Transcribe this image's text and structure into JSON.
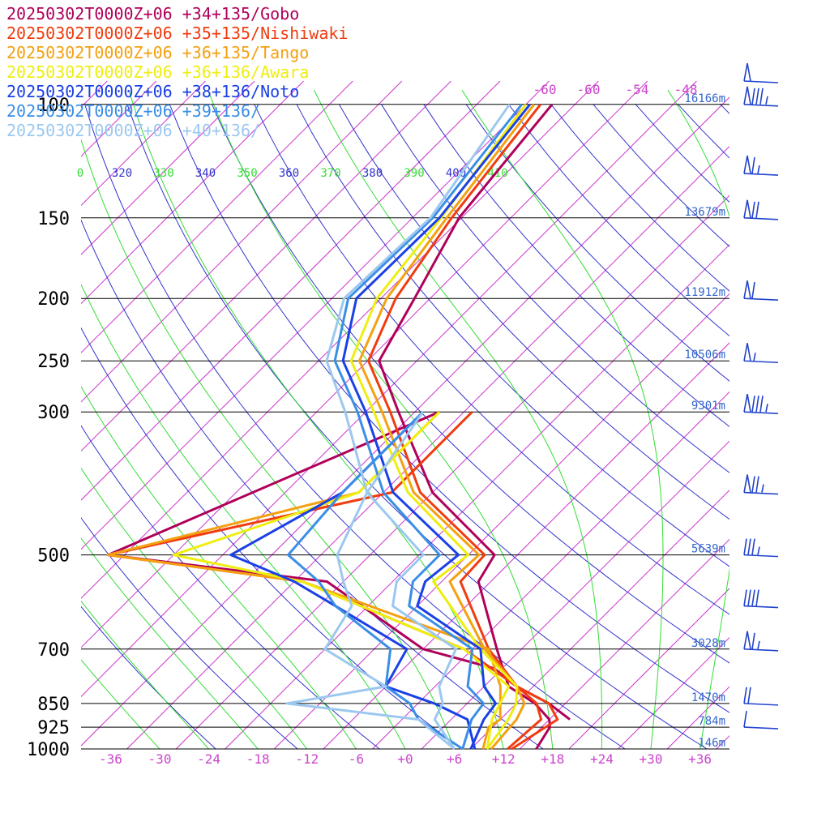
{
  "chart_data": {
    "type": "line",
    "title": "",
    "xlabel": "",
    "ylabel": "",
    "xlim": [
      -40,
      40
    ],
    "y_scale": "log",
    "ylim": [
      1000,
      100
    ],
    "pressure_ticks": [
      {
        "p": 100,
        "label": "100",
        "height": "16166m"
      },
      {
        "p": 150,
        "label": "150",
        "height": "13679m"
      },
      {
        "p": 200,
        "label": "200",
        "height": "11912m"
      },
      {
        "p": 250,
        "label": "250",
        "height": "10506m"
      },
      {
        "p": 300,
        "label": "300",
        "height": "9301m"
      },
      {
        "p": 500,
        "label": "500",
        "height": "5639m"
      },
      {
        "p": 700,
        "label": "700",
        "height": "3028m"
      },
      {
        "p": 850,
        "label": "850",
        "height": "1470m"
      },
      {
        "p": 925,
        "label": "925",
        "height": "784m"
      },
      {
        "p": 1000,
        "label": "1000",
        "height": "146m"
      }
    ],
    "temperature_ticks": [
      "-36",
      "-30",
      "-24",
      "-18",
      "-12",
      "-6",
      "+0",
      "+6",
      "+12",
      "+18",
      "+24",
      "+30",
      "+36"
    ],
    "theta_labels": [
      "0",
      "320",
      "330",
      "340",
      "350",
      "360",
      "370",
      "380",
      "390",
      "400",
      "410"
    ],
    "upper_isotherm_labels": [
      "-60",
      "-60",
      "-54",
      "-48"
    ],
    "colors": {
      "pressure_lines": "#000000",
      "isotherms": "#cc33cc",
      "dry_adiabats": "#3333cc",
      "moist_adiabats": "#33dd33",
      "temperature_labels": "#cc44cc",
      "height_labels": "#3366cc",
      "wind_barbs": "#2244cc"
    },
    "series": [
      {
        "name": "20250302T0000Z+06 +34+135/Gobo",
        "color": "#b0005a",
        "temperature": [
          [
            100,
            -60.8
          ],
          [
            150,
            -58.3
          ],
          [
            200,
            -53.9
          ],
          [
            250,
            -50.6
          ],
          [
            300,
            -42.0
          ],
          [
            400,
            -28.0
          ],
          [
            500,
            -12.8
          ],
          [
            550,
            -11.5
          ],
          [
            700,
            -1.0
          ],
          [
            800,
            5.0
          ],
          [
            850,
            10.3
          ],
          [
            900,
            14.0
          ],
          [
            925,
            15.0
          ],
          [
            1000,
            16.0
          ]
        ],
        "dewpoint": [
          [
            300,
            -37.0
          ],
          [
            500,
            -60.0
          ],
          [
            550,
            -30.0
          ],
          [
            700,
            -10.0
          ],
          [
            750,
            1.0
          ],
          [
            800,
            6.0
          ],
          [
            850,
            12.0
          ],
          [
            900,
            16.5
          ]
        ]
      },
      {
        "name": "20250302T0000Z+06 +35+135/Nishiwaki",
        "color": "#f03c10",
        "temperature": [
          [
            100,
            -62.2
          ],
          [
            150,
            -59.2
          ],
          [
            200,
            -56.2
          ],
          [
            250,
            -51.9
          ],
          [
            300,
            -43.0
          ],
          [
            400,
            -29.5
          ],
          [
            500,
            -14.0
          ],
          [
            550,
            -13.7
          ],
          [
            700,
            -2.0
          ],
          [
            800,
            6.0
          ],
          [
            850,
            10.5
          ],
          [
            900,
            13.0
          ],
          [
            1000,
            12.5
          ]
        ],
        "dewpoint": [
          [
            300,
            -33.0
          ],
          [
            400,
            -33.0
          ],
          [
            500,
            -60.0
          ],
          [
            550,
            -33.0
          ],
          [
            700,
            -5.0
          ],
          [
            800,
            6.0
          ],
          [
            850,
            12.0
          ],
          [
            900,
            15.0
          ],
          [
            1000,
            13.0
          ]
        ]
      },
      {
        "name": "20250302T0000Z+06 +36+135/Tango",
        "color": "#f5a010",
        "temperature": [
          [
            100,
            -63.0
          ],
          [
            150,
            -59.8
          ],
          [
            200,
            -57.3
          ],
          [
            250,
            -53.0
          ],
          [
            300,
            -44.0
          ],
          [
            400,
            -30.3
          ],
          [
            500,
            -14.7
          ],
          [
            550,
            -15.0
          ],
          [
            700,
            -2.5
          ],
          [
            800,
            6.0
          ],
          [
            850,
            9.0
          ],
          [
            900,
            10.0
          ],
          [
            1000,
            10.5
          ]
        ],
        "dewpoint": [
          [
            300,
            -37.0
          ],
          [
            400,
            -37.0
          ],
          [
            500,
            -60.0
          ],
          [
            550,
            -33.0
          ],
          [
            700,
            -2.0
          ],
          [
            800,
            4.0
          ],
          [
            900,
            8.0
          ],
          [
            925,
            7.5
          ],
          [
            1000,
            9.5
          ]
        ]
      },
      {
        "name": "20250302T0000Z+06 +36+136/Awara",
        "color": "#eeee10",
        "temperature": [
          [
            100,
            -64.0
          ],
          [
            150,
            -60.5
          ],
          [
            200,
            -58.5
          ],
          [
            250,
            -54.0
          ],
          [
            300,
            -45.0
          ],
          [
            400,
            -31.0
          ],
          [
            500,
            -16.0
          ],
          [
            550,
            -17.0
          ],
          [
            700,
            -3.0
          ],
          [
            800,
            6.0
          ],
          [
            850,
            8.0
          ],
          [
            900,
            9.0
          ],
          [
            1000,
            10.0
          ]
        ],
        "dewpoint": [
          [
            300,
            -37.0
          ],
          [
            400,
            -37.0
          ],
          [
            500,
            -52.0
          ],
          [
            550,
            -33.0
          ],
          [
            700,
            -5.0
          ],
          [
            800,
            5.0
          ],
          [
            900,
            7.0
          ],
          [
            1000,
            10.0
          ]
        ]
      },
      {
        "name": "20250302T0000Z+06 +38+136/Noto",
        "color": "#1a40e6",
        "temperature": [
          [
            100,
            -63.5
          ],
          [
            150,
            -60.7
          ],
          [
            200,
            -61.0
          ],
          [
            250,
            -55.0
          ],
          [
            300,
            -46.0
          ],
          [
            400,
            -32.8
          ],
          [
            500,
            -17.2
          ],
          [
            550,
            -18.0
          ],
          [
            600,
            -16.0
          ],
          [
            700,
            -3.0
          ],
          [
            800,
            2.0
          ],
          [
            850,
            5.5
          ],
          [
            900,
            6.0
          ],
          [
            1000,
            8.0
          ]
        ],
        "dewpoint": [
          [
            300,
            -39.0
          ],
          [
            400,
            -39.0
          ],
          [
            500,
            -45.0
          ],
          [
            550,
            -34.0
          ],
          [
            600,
            -26.0
          ],
          [
            700,
            -12.0
          ],
          [
            800,
            -10.0
          ],
          [
            850,
            -2.0
          ],
          [
            900,
            4.0
          ],
          [
            1000,
            8.5
          ]
        ]
      },
      {
        "name": "20250302T0000Z+06 +39+136/",
        "color": "#3a8ee6",
        "temperature": [
          [
            100,
            -64.5
          ],
          [
            150,
            -61.5
          ],
          [
            200,
            -62.0
          ],
          [
            250,
            -56.0
          ],
          [
            300,
            -47.0
          ],
          [
            400,
            -34.0
          ],
          [
            500,
            -19.5
          ],
          [
            550,
            -19.5
          ],
          [
            600,
            -17.0
          ],
          [
            700,
            -4.0
          ],
          [
            800,
            0.0
          ],
          [
            850,
            4.0
          ],
          [
            900,
            4.5
          ],
          [
            1000,
            7.0
          ]
        ],
        "dewpoint": [
          [
            300,
            -39.0
          ],
          [
            400,
            -39.0
          ],
          [
            500,
            -38.0
          ],
          [
            550,
            -31.0
          ],
          [
            600,
            -26.0
          ],
          [
            700,
            -14.0
          ],
          [
            800,
            -10.0
          ],
          [
            850,
            -5.0
          ],
          [
            900,
            -2.0
          ],
          [
            1000,
            7.0
          ]
        ]
      },
      {
        "name": "20250302T0000Z+06 +40+136/",
        "color": "#9cc8f0",
        "temperature": [
          [
            100,
            -66.0
          ],
          [
            150,
            -61.8
          ],
          [
            200,
            -62.5
          ],
          [
            250,
            -57.0
          ],
          [
            300,
            -48.5
          ],
          [
            400,
            -36.0
          ],
          [
            500,
            -21.5
          ],
          [
            550,
            -21.5
          ],
          [
            600,
            -19.0
          ],
          [
            700,
            -6.0
          ],
          [
            800,
            -3.5
          ],
          [
            850,
            -1.0
          ],
          [
            900,
            0.0
          ],
          [
            1000,
            6.0
          ]
        ],
        "dewpoint": [
          [
            300,
            -39.0
          ],
          [
            400,
            -36.0
          ],
          [
            500,
            -32.0
          ],
          [
            550,
            -28.0
          ],
          [
            600,
            -24.0
          ],
          [
            700,
            -22.0
          ],
          [
            800,
            -10.0
          ],
          [
            850,
            -20.0
          ],
          [
            900,
            -2.0
          ],
          [
            1000,
            6.0
          ]
        ]
      }
    ],
    "wind_barbs": [
      {
        "p": 92,
        "speed_kt": 50,
        "direction_deg": 270
      },
      {
        "p": 128,
        "speed_kt": 65,
        "direction_deg": 270
      },
      {
        "p": 100,
        "speed_kt": 85,
        "direction_deg": 275
      },
      {
        "p": 150,
        "speed_kt": 70,
        "direction_deg": 275
      },
      {
        "p": 200,
        "speed_kt": 60,
        "direction_deg": 280
      },
      {
        "p": 250,
        "speed_kt": 55,
        "direction_deg": 280
      },
      {
        "p": 300,
        "speed_kt": 85,
        "direction_deg": 275
      },
      {
        "p": 400,
        "speed_kt": 75,
        "direction_deg": 275
      },
      {
        "p": 500,
        "speed_kt": 35,
        "direction_deg": 275
      },
      {
        "p": 600,
        "speed_kt": 40,
        "direction_deg": 265
      },
      {
        "p": 700,
        "speed_kt": 65,
        "direction_deg": 275
      },
      {
        "p": 850,
        "speed_kt": 20,
        "direction_deg": 300
      },
      {
        "p": 925,
        "speed_kt": 10,
        "direction_deg": 340
      }
    ]
  }
}
